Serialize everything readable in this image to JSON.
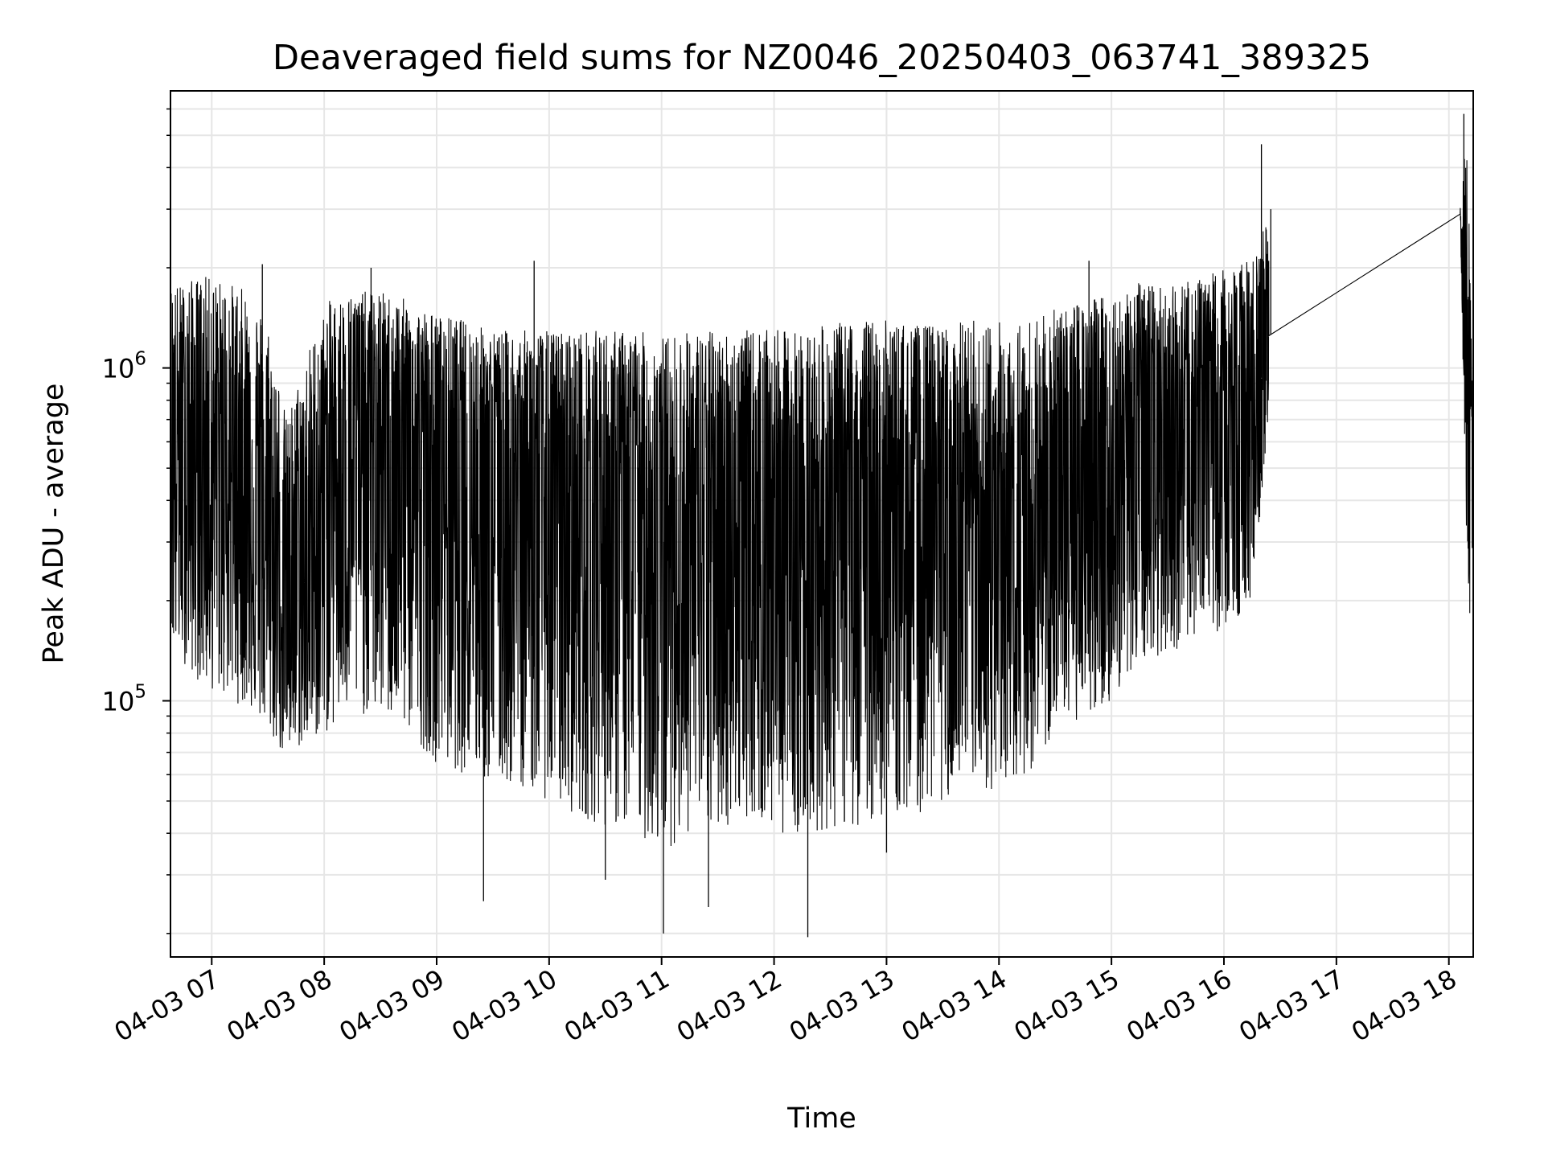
{
  "chart_data": {
    "type": "line",
    "title": "Deaveraged field sums for NZ0046_20250403_063741_389325",
    "xlabel": "Time",
    "ylabel": "Peak ADU - average",
    "y_scale": "log",
    "grid": true,
    "line_color": "#000000",
    "grid_color": "#e6e6e6",
    "xlim": [
      "2025-04-03 06:38",
      "2025-04-03 18:13"
    ],
    "ylim": [
      17000,
      6800000
    ],
    "x_ticks": [
      {
        "t": "2025-04-03 07:00",
        "label": "04-03 07"
      },
      {
        "t": "2025-04-03 08:00",
        "label": "04-03 08"
      },
      {
        "t": "2025-04-03 09:00",
        "label": "04-03 09"
      },
      {
        "t": "2025-04-03 10:00",
        "label": "04-03 10"
      },
      {
        "t": "2025-04-03 11:00",
        "label": "04-03 11"
      },
      {
        "t": "2025-04-03 12:00",
        "label": "04-03 12"
      },
      {
        "t": "2025-04-03 13:00",
        "label": "04-03 13"
      },
      {
        "t": "2025-04-03 14:00",
        "label": "04-03 14"
      },
      {
        "t": "2025-04-03 15:00",
        "label": "04-03 15"
      },
      {
        "t": "2025-04-03 16:00",
        "label": "04-03 16"
      },
      {
        "t": "2025-04-03 17:00",
        "label": "04-03 17"
      },
      {
        "t": "2025-04-03 18:00",
        "label": "04-03 18"
      }
    ],
    "y_ticks": [
      {
        "value": 100000,
        "base": "10",
        "exp": "5"
      },
      {
        "value": 1000000,
        "base": "10",
        "exp": "6"
      }
    ],
    "series": [
      {
        "x": [
          "2025-04-03 06:38",
          "2025-04-03 06:45",
          "2025-04-03 06:55",
          "2025-04-03 07:10",
          "2025-04-03 07:20",
          "2025-04-03 07:30",
          "2025-04-03 07:40",
          "2025-04-03 07:50",
          "2025-04-03 08:03",
          "2025-04-03 08:15",
          "2025-04-03 08:30",
          "2025-04-03 08:45",
          "2025-04-03 09:00",
          "2025-04-03 09:15",
          "2025-04-03 09:30",
          "2025-04-03 09:45",
          "2025-04-03 10:00",
          "2025-04-03 10:15",
          "2025-04-03 10:30",
          "2025-04-03 10:45",
          "2025-04-03 11:00",
          "2025-04-03 11:15",
          "2025-04-03 11:30",
          "2025-04-03 11:45",
          "2025-04-03 12:00",
          "2025-04-03 12:15",
          "2025-04-03 12:30",
          "2025-04-03 12:45",
          "2025-04-03 13:00",
          "2025-04-03 13:15",
          "2025-04-03 13:30",
          "2025-04-03 13:45",
          "2025-04-03 14:00",
          "2025-04-03 14:15",
          "2025-04-03 14:30",
          "2025-04-03 14:45",
          "2025-04-03 15:00",
          "2025-04-03 15:15",
          "2025-04-03 15:30",
          "2025-04-03 15:45",
          "2025-04-03 16:00",
          "2025-04-03 16:15",
          "2025-04-03 16:24",
          "2025-04-03 18:06",
          "2025-04-03 18:10",
          "2025-04-03 18:13"
        ],
        "median": [
          600000,
          500000,
          550000,
          500000,
          400000,
          250000,
          200000,
          180000,
          500000,
          550000,
          550000,
          500000,
          450000,
          450000,
          400000,
          400000,
          350000,
          350000,
          380000,
          350000,
          300000,
          300000,
          300000,
          320000,
          320000,
          300000,
          320000,
          320000,
          320000,
          330000,
          300000,
          260000,
          240000,
          260000,
          400000,
          450000,
          450000,
          500000,
          550000,
          550000,
          600000,
          650000,
          1250000,
          2900000,
          700000,
          400000
        ],
        "high": [
          1800000,
          1800000,
          1900000,
          1800000,
          1700000,
          1400000,
          700000,
          1100000,
          1600000,
          1700000,
          1700000,
          1600000,
          1450000,
          1400000,
          1300000,
          1300000,
          1300000,
          1300000,
          1300000,
          1300000,
          1250000,
          1300000,
          1300000,
          1300000,
          1300000,
          1300000,
          1350000,
          1400000,
          1400000,
          1350000,
          1350000,
          1400000,
          1400000,
          1400000,
          1500000,
          1600000,
          1700000,
          1800000,
          1750000,
          1850000,
          2000000,
          2100000,
          3000000,
          3100000,
          5500000,
          600000
        ],
        "low": [
          140000,
          130000,
          110000,
          100000,
          95000,
          80000,
          65000,
          75000,
          80000,
          90000,
          90000,
          80000,
          65000,
          60000,
          55000,
          55000,
          50000,
          45000,
          42000,
          40000,
          35000,
          40000,
          40000,
          45000,
          40000,
          40000,
          40000,
          42000,
          45000,
          45000,
          50000,
          50000,
          55000,
          60000,
          75000,
          90000,
          100000,
          130000,
          140000,
          150000,
          160000,
          200000,
          700000,
          2900000,
          190000,
          160000
        ]
      }
    ],
    "spikes": [
      {
        "t": "2025-04-03 07:27",
        "value": 2050000
      },
      {
        "t": "2025-04-03 08:25",
        "value": 2000000
      },
      {
        "t": "2025-04-03 09:52",
        "value": 2100000
      },
      {
        "t": "2025-04-03 14:48",
        "value": 2100000
      },
      {
        "t": "2025-04-03 16:20",
        "value": 4700000
      },
      {
        "t": "2025-04-03 16:25",
        "value": 3000000
      },
      {
        "t": "2025-04-03 18:08",
        "value": 5800000
      },
      {
        "t": "2025-04-03 09:25",
        "value": 25000
      },
      {
        "t": "2025-04-03 11:01",
        "value": 20000
      },
      {
        "t": "2025-04-03 12:18",
        "value": 19500
      },
      {
        "t": "2025-04-03 10:30",
        "value": 29000
      },
      {
        "t": "2025-04-03 11:25",
        "value": 24000
      },
      {
        "t": "2025-04-03 13:00",
        "value": 35000
      }
    ]
  }
}
